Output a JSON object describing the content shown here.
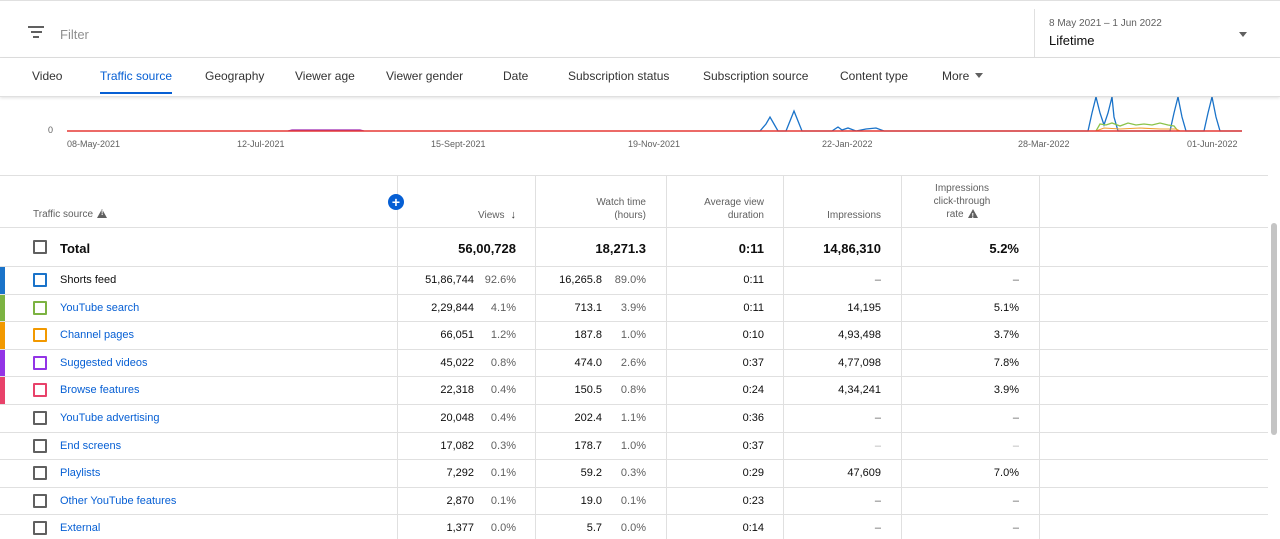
{
  "filter": {
    "placeholder": "Filter"
  },
  "date": {
    "range": "8 May 2021 – 1 Jun 2022",
    "label": "Lifetime"
  },
  "tabs": [
    {
      "label": "Video",
      "active": false
    },
    {
      "label": "Traffic source",
      "active": true
    },
    {
      "label": "Geography",
      "active": false
    },
    {
      "label": "Viewer age",
      "active": false
    },
    {
      "label": "Viewer gender",
      "active": false
    },
    {
      "label": "Date",
      "active": false
    },
    {
      "label": "Subscription status",
      "active": false
    },
    {
      "label": "Subscription source",
      "active": false
    },
    {
      "label": "Content type",
      "active": false
    },
    {
      "label": "More",
      "active": false
    }
  ],
  "chart_data": {
    "type": "line",
    "y_tick_labels": [
      "0"
    ],
    "x_tick_labels": [
      "08-May-2021",
      "12-Jul-2021",
      "15-Sept-2021",
      "19-Nov-2021",
      "22-Jan-2022",
      "28-Mar-2022",
      "01-Jun-2022"
    ],
    "series_colors": {
      "shorts": "#1a73c9",
      "search": "#8bc34a",
      "channel": "#f0a030",
      "suggested": "#9c27b0",
      "browse": "#e53935"
    }
  },
  "table": {
    "headers": {
      "source": "Traffic source",
      "views": "Views",
      "watch_time_1": "Watch time",
      "watch_time_2": "(hours)",
      "avg_1": "Average view",
      "avg_2": "duration",
      "impressions": "Impressions",
      "ctr_1": "Impressions",
      "ctr_2": "click-through",
      "ctr_3": "rate"
    },
    "total": {
      "label": "Total",
      "views": "56,00,728",
      "watch": "18,271.3",
      "avg": "0:11",
      "impressions": "14,86,310",
      "ctr": "5.2%"
    },
    "rows": [
      {
        "name": "Shorts feed",
        "link": false,
        "color": "#1a73c9",
        "views": "51,86,744",
        "views_pct": "92.6%",
        "watch": "16,265.8",
        "watch_pct": "89.0%",
        "avg": "0:11",
        "impressions": "–",
        "ctr": "–"
      },
      {
        "name": "YouTube search",
        "link": true,
        "color": "#7cb342",
        "views": "2,29,844",
        "views_pct": "4.1%",
        "watch": "713.1",
        "watch_pct": "3.9%",
        "avg": "0:11",
        "impressions": "14,195",
        "ctr": "5.1%"
      },
      {
        "name": "Channel pages",
        "link": true,
        "color": "#f29900",
        "views": "66,051",
        "views_pct": "1.2%",
        "watch": "187.8",
        "watch_pct": "1.0%",
        "avg": "0:10",
        "impressions": "4,93,498",
        "ctr": "3.7%"
      },
      {
        "name": "Suggested videos",
        "link": true,
        "color": "#9334e6",
        "views": "45,022",
        "views_pct": "0.8%",
        "watch": "474.0",
        "watch_pct": "2.6%",
        "avg": "0:37",
        "impressions": "4,77,098",
        "ctr": "7.8%"
      },
      {
        "name": "Browse features",
        "link": true,
        "color": "#e8426a",
        "views": "22,318",
        "views_pct": "0.4%",
        "watch": "150.5",
        "watch_pct": "0.8%",
        "avg": "0:24",
        "impressions": "4,34,241",
        "ctr": "3.9%"
      },
      {
        "name": "YouTube advertising",
        "link": true,
        "color": "",
        "views": "20,048",
        "views_pct": "0.4%",
        "watch": "202.4",
        "watch_pct": "1.1%",
        "avg": "0:36",
        "impressions": "–",
        "ctr": "–"
      },
      {
        "name": "End screens",
        "link": true,
        "color": "",
        "views": "17,082",
        "views_pct": "0.3%",
        "watch": "178.7",
        "watch_pct": "1.0%",
        "avg": "0:37",
        "impressions": "–",
        "ctr": "–"
      },
      {
        "name": "Playlists",
        "link": true,
        "color": "",
        "views": "7,292",
        "views_pct": "0.1%",
        "watch": "59.2",
        "watch_pct": "0.3%",
        "avg": "0:29",
        "impressions": "47,609",
        "ctr": "7.0%"
      },
      {
        "name": "Other YouTube features",
        "link": true,
        "color": "",
        "views": "2,870",
        "views_pct": "0.1%",
        "watch": "19.0",
        "watch_pct": "0.1%",
        "avg": "0:23",
        "impressions": "–",
        "ctr": "–"
      },
      {
        "name": "External",
        "link": true,
        "color": "",
        "views": "1,377",
        "views_pct": "0.0%",
        "watch": "5.7",
        "watch_pct": "0.0%",
        "avg": "0:14",
        "impressions": "–",
        "ctr": "–"
      }
    ]
  }
}
